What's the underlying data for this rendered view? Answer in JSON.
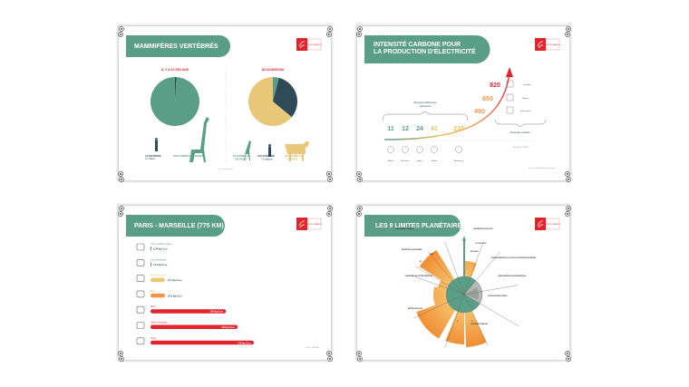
{
  "colors": {
    "green": "#5a9e88",
    "dark": "#2f4b58",
    "yellow": "#e8c878",
    "orange": "#f0954a",
    "red": "#e3232c",
    "title_bg": "#5a9e88"
  },
  "logo": {
    "text": "ACTE FRANCE"
  },
  "cards": [
    {
      "title": "MAMMIFÈRES VERTÉBRÉS",
      "left_heading": "IL Y A 10 000 ANS",
      "right_heading": "AUJOURD'HUI",
      "left_pie": [
        {
          "label": "1% D'HUMAINS",
          "sub": "10 millions",
          "value": 1,
          "color": "#2f4b58"
        },
        {
          "label": "99% D'ANIMAUX SAUVAGES",
          "value": 99,
          "color": "#5a9e88"
        }
      ],
      "right_pie": [
        {
          "label": "4% D'ANIMAUX",
          "label2": "SAUVAGES",
          "value": 4,
          "color": "#5a9e88"
        },
        {
          "label": "32% D'HUMAINS",
          "sub": "7,6 milliards",
          "value": 32,
          "color": "#2f4b58"
        },
        {
          "label": "64% D'ANIMAUX",
          "label2": "ÉLEVAGE",
          "value": 64,
          "color": "#e8c878"
        }
      ],
      "source": "Source : pnas.com"
    },
    {
      "title_line1": "INTENSITÉ CARBONE POUR",
      "title_line2": "LA PRODUCTION D'ÉLECTRICITÉ",
      "low_group_line1": "Énergies faiblement",
      "low_group_line2": "carbonées",
      "fossil_group": "Énergies fossiles",
      "unit": "gCO₂eq / kWh",
      "source": "Source : OurWorldInData.org/energy",
      "low": [
        {
          "value": "11",
          "label": "Éolien",
          "color": "#5a9e88"
        },
        {
          "value": "12",
          "label": "Nucléaire",
          "color": "#5a9e88"
        },
        {
          "value": "24",
          "label": "Hydro.",
          "color": "#5a9e88"
        },
        {
          "value": "41",
          "label": "Solaire",
          "color": "#e8c060"
        },
        {
          "value": "230",
          "label": "Biomasse",
          "color": "#e8c060"
        }
      ],
      "fossil": [
        {
          "value": "820",
          "label": "Charbon",
          "color": "#e3232c"
        },
        {
          "value": "650",
          "label": "Pétrole",
          "color": "#f0954a"
        },
        {
          "value": "490",
          "label": "Gaz naturel",
          "color": "#f0954a"
        }
      ]
    },
    {
      "title": "PARIS - MARSEILLE (775 KM)",
      "source": "Source : ADEME",
      "rows": [
        {
          "label": "Train à grande vitesse",
          "value": 1.34,
          "text": "1,34 kg Co₂e",
          "color": "#5a9e88",
          "icon": "tgv-icon"
        },
        {
          "label": "Train interurbain",
          "value": 4.11,
          "text": "4,11 kg Co₂e",
          "color": "#5a9e88",
          "icon": "train-icon"
        },
        {
          "label": "Voiture électrique",
          "value": 15.4,
          "text": "15,4 kg Co₂e",
          "color": "#e8c878",
          "icon": "electric-car-icon"
        },
        {
          "label": "Bus",
          "value": 23.3,
          "text": "23,3 kg Co₂e",
          "color": "#f0954a",
          "icon": "bus-icon"
        },
        {
          "label": "Moto",
          "value": 130,
          "text": "130 kg Co₂e",
          "color": "#e3232c",
          "icon": "motorbike-icon"
        },
        {
          "label": "Voiture thermique",
          "value": 150,
          "text": "150 kg Co₂e",
          "color": "#e3232c",
          "icon": "car-icon"
        },
        {
          "label": "Avion",
          "value": 178,
          "text": "178 kg Co₂e",
          "color": "#e3232c",
          "icon": "plane-icon"
        }
      ]
    },
    {
      "title": "LES 9 LIMITES PLANÉTAIRES",
      "labels": [
        "CHANGEMENT CLIMATIQUE",
        "CHANGEMENT D'EAU DOUCE",
        "CYCLE DE L'EAU",
        "APPAUVRISSEMENT DE LA COUCHE D'OZONE STRATOSPHÉRIQUE",
        "CHARGE D'AÉROSOLS ATMOSPHÉRIQUES",
        "ACIDIFICATION DES OCÉANS",
        "FLUX BIOGÉOCHIMIQUES",
        "ENTITÉS NOUVELLES",
        "CHANGEMENT DU SYSTÈME TERRESTRE",
        "BII",
        "INTÉGRITÉ DE LA BIOSPHÈRE",
        "E/MSY",
        "EAU VERTE",
        "P",
        "N"
      ]
    }
  ]
}
